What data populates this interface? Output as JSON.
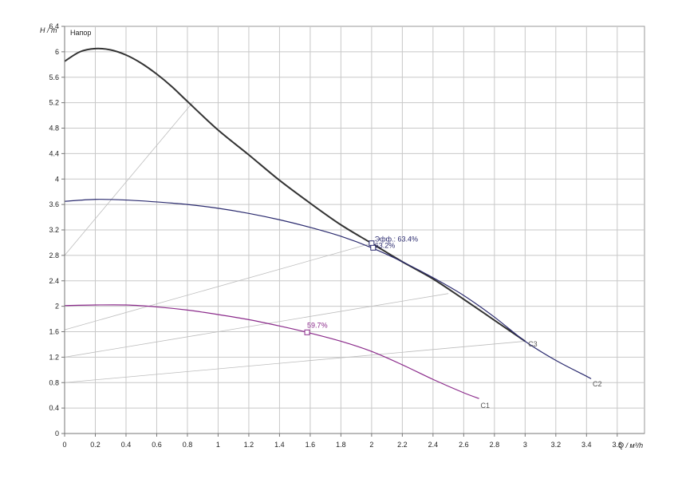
{
  "chart_data": {
    "type": "line",
    "title": "Напор",
    "xlabel": "Q / м³/h",
    "ylabel": "H / m",
    "xlim": [
      0,
      3.8
    ],
    "ylim": [
      0,
      6.4
    ],
    "x_ticks": [
      "0",
      "0.2",
      "0.4",
      "0.6",
      "0.8",
      "1",
      "1.2",
      "1.4",
      "1.6",
      "1.8",
      "2",
      "2.2",
      "2.4",
      "2.6",
      "2.8",
      "3",
      "3.2",
      "3.4",
      "3.6"
    ],
    "y_ticks": [
      "0",
      "0.4",
      "0.8",
      "1.2",
      "1.6",
      "2",
      "2.4",
      "2.8",
      "3.2",
      "3.6",
      "4",
      "4.4",
      "4.8",
      "5.2",
      "5.6",
      "6",
      "6.4"
    ],
    "grid": true,
    "legend": "none",
    "series": [
      {
        "name": "C3",
        "color": "#333333",
        "x": [
          0,
          0.1,
          0.2,
          0.3,
          0.4,
          0.5,
          0.6,
          0.7,
          0.8,
          1.0,
          1.2,
          1.4,
          1.6,
          1.8,
          2.0,
          2.2,
          2.4,
          2.6,
          2.8,
          3.0
        ],
        "y": [
          5.85,
          6.0,
          6.05,
          6.03,
          5.95,
          5.82,
          5.65,
          5.45,
          5.22,
          4.77,
          4.38,
          3.98,
          3.62,
          3.28,
          2.99,
          2.7,
          2.43,
          2.11,
          1.78,
          1.45
        ]
      },
      {
        "name": "C2",
        "color": "#2a2a6e",
        "x": [
          0,
          0.2,
          0.4,
          0.6,
          0.8,
          1.0,
          1.2,
          1.4,
          1.6,
          1.8,
          2.0,
          2.2,
          2.4,
          2.6,
          2.8,
          3.0,
          3.2,
          3.4,
          3.43
        ],
        "y": [
          3.65,
          3.68,
          3.67,
          3.64,
          3.6,
          3.54,
          3.46,
          3.36,
          3.24,
          3.1,
          2.92,
          2.7,
          2.45,
          2.17,
          1.83,
          1.45,
          1.15,
          0.9,
          0.86
        ]
      },
      {
        "name": "C1",
        "color": "#8b2b8b",
        "x": [
          0,
          0.2,
          0.4,
          0.6,
          0.8,
          1.0,
          1.2,
          1.4,
          1.58,
          1.8,
          2.0,
          2.2,
          2.4,
          2.6,
          2.7
        ],
        "y": [
          2.01,
          2.02,
          2.02,
          1.99,
          1.94,
          1.87,
          1.79,
          1.69,
          1.59,
          1.45,
          1.29,
          1.08,
          0.85,
          0.64,
          0.55
        ]
      }
    ],
    "reference_lines": [
      {
        "x": [
          0,
          0.84
        ],
        "y": [
          2.8,
          5.22
        ]
      },
      {
        "x": [
          0,
          2.0
        ],
        "y": [
          1.63,
          2.99
        ]
      },
      {
        "x": [
          0,
          2.5
        ],
        "y": [
          1.2,
          2.2
        ]
      },
      {
        "x": [
          0,
          3.0
        ],
        "y": [
          0.8,
          1.45
        ]
      }
    ],
    "curve_labels": [
      {
        "text": "C3",
        "x": 3.02,
        "y": 1.37,
        "color": "#555555"
      },
      {
        "text": "C2",
        "x": 3.44,
        "y": 0.74,
        "color": "#555555"
      },
      {
        "text": "C1",
        "x": 2.71,
        "y": 0.4,
        "color": "#555555"
      }
    ],
    "annotations": [
      {
        "text": "Эфф.: 63.4%",
        "x": 2.02,
        "y": 3.02,
        "color": "#2a2a6e",
        "marker_x": 2.0,
        "marker_y": 2.99
      },
      {
        "text": "63.2%",
        "x": 2.02,
        "y": 2.92,
        "color": "#2a2a6e",
        "marker_x": 2.01,
        "marker_y": 2.92
      },
      {
        "text": "59.7%",
        "x": 1.58,
        "y": 1.66,
        "color": "#8b2b8b",
        "marker_x": 1.58,
        "marker_y": 1.59
      }
    ]
  }
}
